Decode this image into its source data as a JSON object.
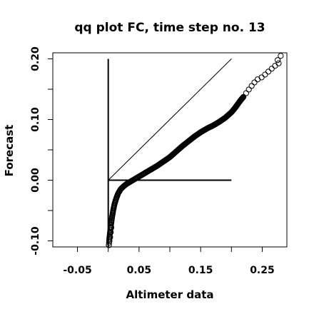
{
  "chart_data": {
    "type": "scatter",
    "title": "qq plot FC, time step no. 13",
    "xlabel": "Altimeter data",
    "ylabel": "Forecast",
    "xlim": [
      -0.09,
      0.29
    ],
    "ylim": [
      -0.11,
      0.21
    ],
    "x_ticks": [
      -0.05,
      0.05,
      0.15,
      0.25
    ],
    "x_tick_labels": [
      "-0.05",
      "0.05",
      "0.15",
      "0.25"
    ],
    "x_minor_ticks": [
      0.0,
      0.1,
      0.2
    ],
    "y_ticks": [
      -0.1,
      0.0,
      0.1,
      0.2
    ],
    "y_tick_labels": [
      "-0.10",
      "0.00",
      "0.10",
      "0.20"
    ],
    "y_minor_ticks": [
      -0.05,
      0.05,
      0.15
    ],
    "grid": false,
    "marker": "open-circle",
    "reference_lines": [
      {
        "name": "",
        "x": [
          0.0,
          0.2
        ],
        "y": [
          0.0,
          0.2
        ]
      },
      {
        "name": "",
        "x": [
          0.0,
          0.0
        ],
        "y": [
          -0.11,
          0.2
        ]
      },
      {
        "name": "",
        "x": [
          0.0,
          0.2
        ],
        "y": [
          0.0,
          0.0
        ]
      }
    ],
    "quantile_curve": {
      "x": [
        0.001,
        0.002,
        0.004,
        0.006,
        0.008,
        0.01,
        0.013,
        0.016,
        0.02,
        0.025,
        0.03,
        0.04,
        0.05,
        0.06,
        0.07,
        0.08,
        0.09,
        0.1,
        0.11,
        0.12,
        0.13,
        0.14,
        0.15,
        0.16,
        0.17,
        0.18,
        0.19,
        0.2,
        0.205,
        0.21,
        0.215,
        0.22,
        0.225,
        0.23,
        0.235,
        0.24,
        0.25,
        0.26,
        0.27,
        0.28
      ],
      "y": [
        -0.107,
        -0.094,
        -0.077,
        -0.062,
        -0.05,
        -0.04,
        -0.03,
        -0.022,
        -0.015,
        -0.01,
        -0.006,
        0.0,
        0.006,
        0.012,
        0.018,
        0.024,
        0.031,
        0.038,
        0.047,
        0.056,
        0.064,
        0.072,
        0.079,
        0.085,
        0.09,
        0.096,
        0.103,
        0.112,
        0.118,
        0.125,
        0.132,
        0.138,
        0.145,
        0.152,
        0.158,
        0.165,
        0.17,
        0.179,
        0.188,
        0.195
      ]
    },
    "points": [
      {
        "x": 0.001,
        "y": -0.107
      },
      {
        "x": 0.002,
        "y": -0.1
      },
      {
        "x": 0.003,
        "y": -0.094
      },
      {
        "x": 0.004,
        "y": -0.086
      },
      {
        "x": 0.005,
        "y": -0.078
      },
      {
        "x": 0.275,
        "y": 0.198
      },
      {
        "x": 0.28,
        "y": 0.205
      }
    ]
  }
}
